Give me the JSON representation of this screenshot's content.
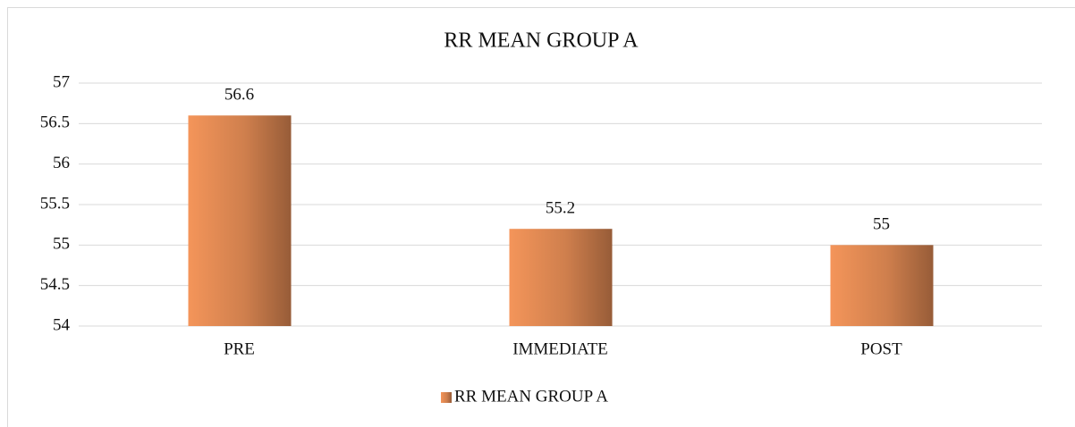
{
  "chart_data": {
    "type": "bar",
    "title": "RR MEAN GROUP A",
    "categories": [
      "PRE",
      "IMMEDIATE",
      "POST"
    ],
    "series": [
      {
        "name": "RR MEAN GROUP A",
        "color": "#f4955a",
        "values": [
          56.6,
          55.2,
          55
        ]
      }
    ],
    "ylim": [
      54,
      57
    ],
    "yticks": [
      54,
      54.5,
      55,
      55.5,
      56,
      56.5,
      57
    ],
    "grid": true,
    "legend": "bottom"
  }
}
